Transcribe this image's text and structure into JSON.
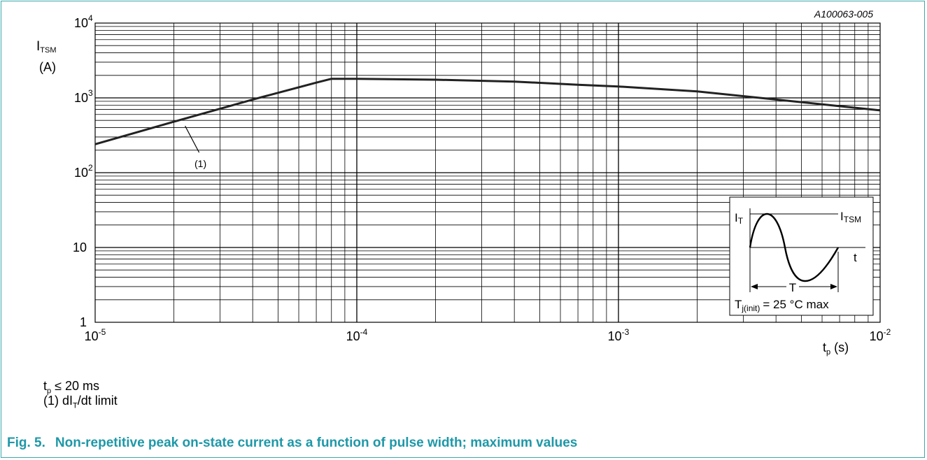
{
  "figure_id": "A100063-005",
  "chart_data": {
    "type": "line",
    "x_scale": "log",
    "y_scale": "log",
    "xlim": [
      1e-05,
      0.01
    ],
    "ylim": [
      1,
      10000
    ],
    "ylabel_main": "I",
    "ylabel_sub": "TSM",
    "ylabel_unit": "(A)",
    "xlabel_main": "t",
    "xlabel_sub": "p",
    "xlabel_unit": "(s)",
    "x_ticks": [
      {
        "value": 1e-05,
        "base": "10",
        "exp": "-5"
      },
      {
        "value": 0.0001,
        "base": "10",
        "exp": "-4"
      },
      {
        "value": 0.001,
        "base": "10",
        "exp": "-3"
      },
      {
        "value": 0.01,
        "base": "10",
        "exp": "-2"
      }
    ],
    "y_ticks": [
      {
        "value": 10000,
        "base": "10",
        "exp": "4"
      },
      {
        "value": 1000,
        "base": "10",
        "exp": "3"
      },
      {
        "value": 100,
        "base": "10",
        "exp": "2"
      },
      {
        "value": 10,
        "base": "10",
        "exp": ""
      },
      {
        "value": 1,
        "base": "1",
        "exp": ""
      }
    ],
    "grid": true,
    "series": [
      {
        "x": [
          1e-05,
          2e-05,
          4e-05,
          7e-05,
          8e-05,
          0.0001,
          0.0002,
          0.0004,
          0.0007,
          0.001,
          0.002,
          0.004,
          0.01
        ],
        "y": [
          240,
          480,
          950,
          1600,
          1800,
          1800,
          1750,
          1650,
          1500,
          1420,
          1220,
          950,
          680
        ]
      }
    ],
    "annotations": [
      {
        "text": "(1)",
        "x": 2e-05,
        "y": 480
      }
    ]
  },
  "inset": {
    "it_main": "I",
    "it_sub": "T",
    "itsm_main": "I",
    "itsm_sub": "TSM",
    "t_label": "t",
    "period_label": "T",
    "tj_main": "T",
    "tj_sub": "j(init)",
    "tj_rest": "= 25 °C max"
  },
  "notes": {
    "line1_main": "t",
    "line1_sub": "p",
    "line1_rest": "≤ 20 ms",
    "line2_pre": "(1) dI",
    "line2_sub": "T",
    "line2_rest": "/dt limit"
  },
  "caption": {
    "label": "Fig. 5.",
    "text": "Non-repetitive peak on-state current as a function of pulse width; maximum values"
  },
  "colors": {
    "border": "#3da8ad",
    "caption": "#1e98a8",
    "line": "#222222",
    "grid": "#000000"
  }
}
